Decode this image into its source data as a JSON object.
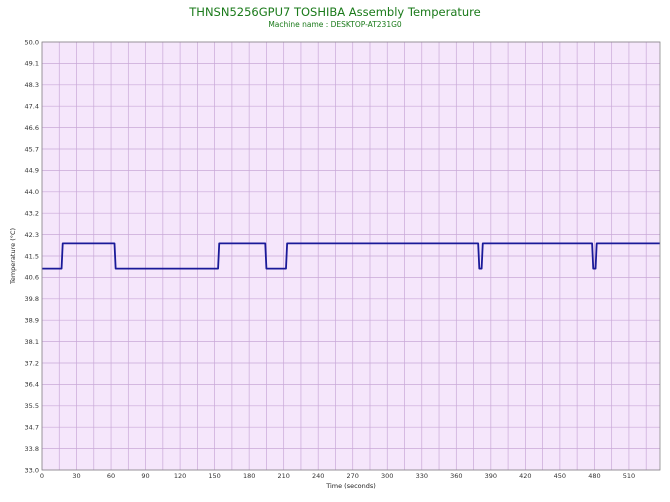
{
  "chart_data": {
    "type": "line",
    "title": "THNSN5256GPU7 TOSHIBA Assembly Temperature",
    "subtitle": "Machine name : DESKTOP-AT231G0",
    "xlabel": "Time (seconds)",
    "ylabel": "Temperature (°C)",
    "xlim": [
      0,
      537
    ],
    "ylim": [
      33.0,
      50.0
    ],
    "x_ticks": [
      0,
      30,
      60,
      90,
      120,
      150,
      180,
      210,
      240,
      270,
      300,
      330,
      360,
      390,
      420,
      450,
      480,
      510
    ],
    "y_ticks": [
      "50.0",
      "49.1",
      "48.3",
      "47.4",
      "46.6",
      "45.7",
      "44.9",
      "44.0",
      "43.2",
      "42.3",
      "41.5",
      "40.6",
      "39.8",
      "38.9",
      "38.1",
      "37.2",
      "36.4",
      "35.5",
      "34.7",
      "33.8",
      "33.0"
    ],
    "grid": true,
    "colors": {
      "plot_background": "#f5e6fb",
      "grid": "#c9a8d8",
      "line": "#1a1a99"
    },
    "series": [
      {
        "values": [
          [
            0,
            41.0
          ],
          [
            17,
            41.0
          ],
          [
            18,
            42.0
          ],
          [
            63,
            42.0
          ],
          [
            64,
            41.0
          ],
          [
            153,
            41.0
          ],
          [
            154,
            42.0
          ],
          [
            194,
            42.0
          ],
          [
            195,
            41.0
          ],
          [
            212,
            41.0
          ],
          [
            213,
            42.0
          ],
          [
            379,
            42.0
          ],
          [
            380,
            41.0
          ],
          [
            382,
            41.0
          ],
          [
            383,
            42.0
          ],
          [
            478,
            42.0
          ],
          [
            479,
            41.0
          ],
          [
            481,
            41.0
          ],
          [
            482,
            42.0
          ],
          [
            537,
            42.0
          ]
        ]
      }
    ]
  }
}
